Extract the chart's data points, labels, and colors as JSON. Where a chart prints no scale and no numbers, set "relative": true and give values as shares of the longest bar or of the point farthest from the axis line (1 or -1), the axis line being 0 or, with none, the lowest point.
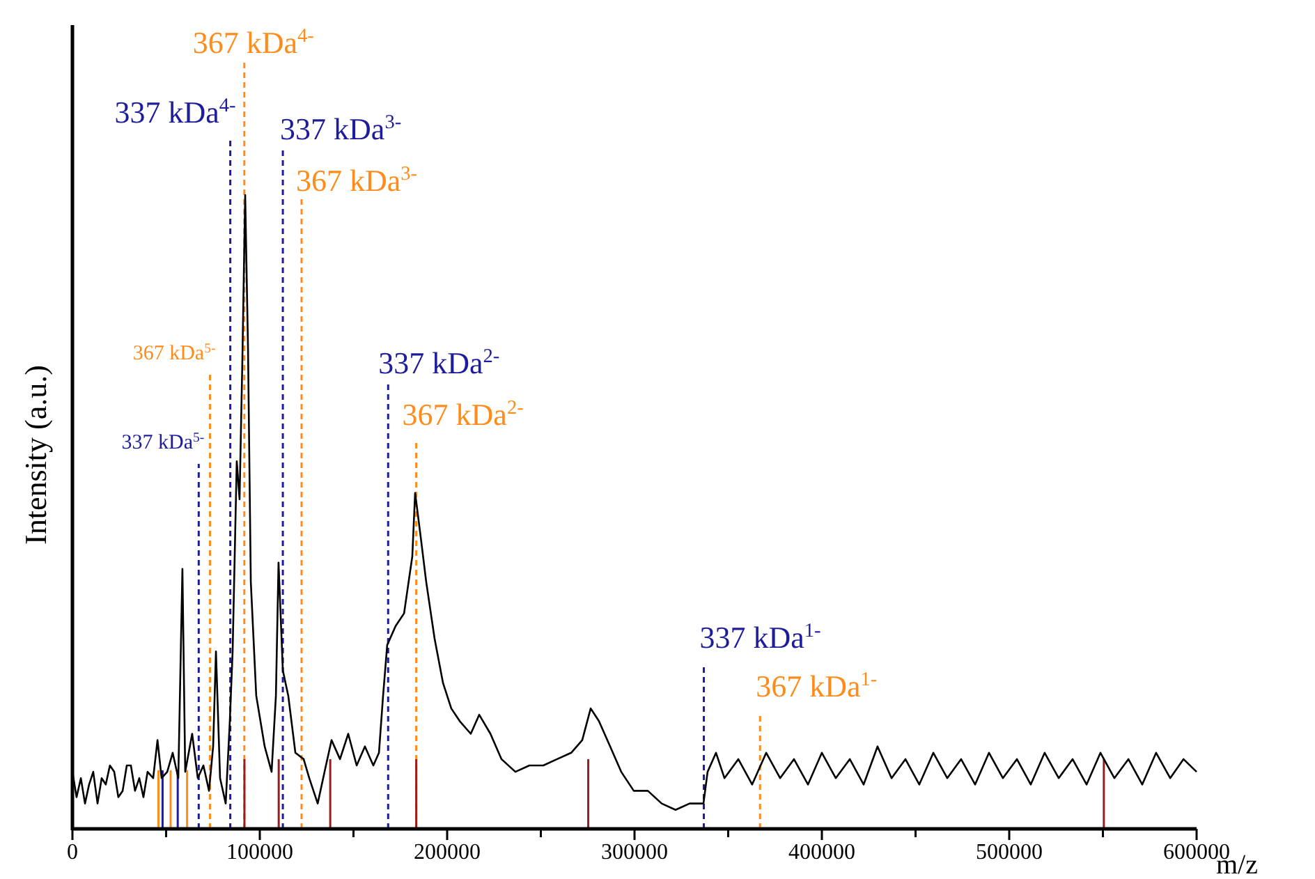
{
  "chart_data": {
    "type": "line",
    "relative": true,
    "xlabel": "m/z",
    "ylabel": "Intensity (a.u.)",
    "xlim": [
      0,
      600000
    ],
    "xticks": [
      0,
      {
        "value": 50000,
        "label": null
      },
      100000,
      {
        "value": 150000,
        "label": null
      },
      200000,
      {
        "value": 250000,
        "label": null
      },
      300000,
      {
        "value": 350000,
        "label": null
      },
      400000,
      {
        "value": 450000,
        "label": null
      },
      500000,
      {
        "value": 550000,
        "label": null
      },
      600000
    ],
    "grid": false,
    "marker": "none",
    "line_style": "solid",
    "series": [
      {
        "color": "#000000",
        "x": [
          0,
          2200,
          4500,
          6700,
          8900,
          11100,
          13400,
          15600,
          17800,
          20000,
          22300,
          24500,
          26800,
          29000,
          31200,
          33400,
          35700,
          37900,
          40100,
          43100,
          45400,
          47600,
          50600,
          53500,
          56500,
          58700,
          60200,
          63900,
          66900,
          69900,
          72900,
          75100,
          76600,
          78800,
          81800,
          84000,
          85500,
          87700,
          89200,
          90700,
          92200,
          93700,
          95200,
          98100,
          102600,
          106300,
          108600,
          110000,
          112300,
          115200,
          119000,
          123400,
          126400,
          130900,
          135300,
          138300,
          142800,
          147200,
          151700,
          156100,
          160600,
          163600,
          165800,
          168000,
          172500,
          177000,
          181400,
          182900,
          185900,
          188800,
          193300,
          197800,
          202200,
          206700,
          212600,
          217100,
          223100,
          229000,
          236400,
          243900,
          251300,
          258700,
          266200,
          272100,
          276600,
          281000,
          287000,
          292900,
          299600,
          307100,
          314500,
          321900,
          329400,
          336800,
          339000,
          343500,
          348000,
          355400,
          362800,
          370300,
          377700,
          385100,
          392600,
          400000,
          407400,
          414900,
          422300,
          429700,
          437200,
          444600,
          452000,
          459500,
          466900,
          474300,
          481800,
          489200,
          496600,
          504100,
          511500,
          518900,
          526400,
          533800,
          541300,
          548700,
          556100,
          563600,
          571000,
          578400,
          585900,
          593000,
          600000
        ],
        "values": [
          0.09,
          0.05,
          0.08,
          0.04,
          0.07,
          0.09,
          0.04,
          0.08,
          0.07,
          0.1,
          0.09,
          0.05,
          0.06,
          0.1,
          0.1,
          0.06,
          0.08,
          0.05,
          0.09,
          0.08,
          0.14,
          0.08,
          0.09,
          0.12,
          0.08,
          0.41,
          0.09,
          0.15,
          0.08,
          0.1,
          0.06,
          0.13,
          0.28,
          0.08,
          0.04,
          0.17,
          0.28,
          0.58,
          0.52,
          0.74,
          1,
          0.76,
          0.39,
          0.21,
          0.13,
          0.09,
          0.21,
          0.42,
          0.25,
          0.21,
          0.12,
          0.11,
          0.08,
          0.04,
          0.1,
          0.14,
          0.11,
          0.15,
          0.1,
          0.13,
          0.1,
          0.12,
          0.21,
          0.29,
          0.32,
          0.34,
          0.43,
          0.53,
          0.46,
          0.39,
          0.3,
          0.23,
          0.19,
          0.17,
          0.15,
          0.18,
          0.15,
          0.11,
          0.09,
          0.1,
          0.1,
          0.11,
          0.12,
          0.14,
          0.19,
          0.17,
          0.13,
          0.09,
          0.06,
          0.06,
          0.04,
          0.03,
          0.04,
          0.04,
          0.09,
          0.12,
          0.08,
          0.11,
          0.07,
          0.12,
          0.08,
          0.11,
          0.07,
          0.12,
          0.08,
          0.11,
          0.07,
          0.13,
          0.08,
          0.11,
          0.07,
          0.12,
          0.08,
          0.11,
          0.07,
          0.12,
          0.08,
          0.11,
          0.07,
          0.12,
          0.08,
          0.11,
          0.07,
          0.12,
          0.08,
          0.11,
          0.07,
          0.12,
          0.08,
          0.11,
          0.09
        ]
      }
    ],
    "ref_lines": [
      {
        "axis": "x",
        "value": 67400,
        "label": "337 kDa$^{5-}$",
        "color": "#1c1c9c",
        "line_style": "dashed"
      },
      {
        "axis": "x",
        "value": 73400,
        "label": "367 kDa$^{5-}$",
        "color": "#ff8c1a",
        "line_style": "dashed"
      },
      {
        "axis": "x",
        "value": 84250,
        "label": "337 kDa$^{4-}$",
        "color": "#1c1c9c",
        "line_style": "dashed"
      },
      {
        "axis": "x",
        "value": 91750,
        "label": "367 kDa$^{4-}$",
        "color": "#ff8c1a",
        "line_style": "dashed"
      },
      {
        "axis": "x",
        "value": 112300,
        "label": "337 kDa$^{3-}$",
        "color": "#1c1c9c",
        "line_style": "dashed"
      },
      {
        "axis": "x",
        "value": 122300,
        "label": "367 kDa$^{3-}$",
        "color": "#ff8c1a",
        "line_style": "dashed"
      },
      {
        "axis": "x",
        "value": 168500,
        "label": "337 kDa$^{2-}$",
        "color": "#1c1c9c",
        "line_style": "dashed"
      },
      {
        "axis": "x",
        "value": 183500,
        "label": "367 kDa$^{2-}$",
        "color": "#ff8c1a",
        "line_style": "dashed"
      },
      {
        "axis": "x",
        "value": 337000,
        "label": "337 kDa$^{1-}$",
        "color": "#1c1c9c",
        "line_style": "dashed"
      },
      {
        "axis": "x",
        "value": 367000,
        "label": "367 kDa$^{1-}$",
        "color": "#ff8c1a",
        "line_style": "dashed"
      },
      {
        "axis": "x",
        "value": 45900,
        "color": "#ff8c1a",
        "line_style": "solid"
      },
      {
        "axis": "x",
        "value": 48100,
        "color": "#1c1c9c",
        "line_style": "solid"
      },
      {
        "axis": "x",
        "value": 52400,
        "color": "#ff8c1a",
        "line_style": "solid"
      },
      {
        "axis": "x",
        "value": 56200,
        "color": "#1c1c9c",
        "line_style": "solid"
      },
      {
        "axis": "x",
        "value": 61200,
        "color": "#ff8c1a",
        "line_style": "solid"
      },
      {
        "axis": "x",
        "value": 91800,
        "color": "#9b1c1c",
        "line_style": "solid"
      },
      {
        "axis": "x",
        "value": 110100,
        "color": "#9b1c1c",
        "line_style": "solid"
      },
      {
        "axis": "x",
        "value": 137600,
        "color": "#9b1c1c",
        "line_style": "solid"
      },
      {
        "axis": "x",
        "value": 183500,
        "color": "#9b1c1c",
        "line_style": "solid"
      },
      {
        "axis": "x",
        "value": 275300,
        "color": "#9b1c1c",
        "line_style": "solid"
      },
      {
        "axis": "x",
        "value": 550500,
        "color": "#9b1c1c",
        "line_style": "solid"
      }
    ]
  }
}
